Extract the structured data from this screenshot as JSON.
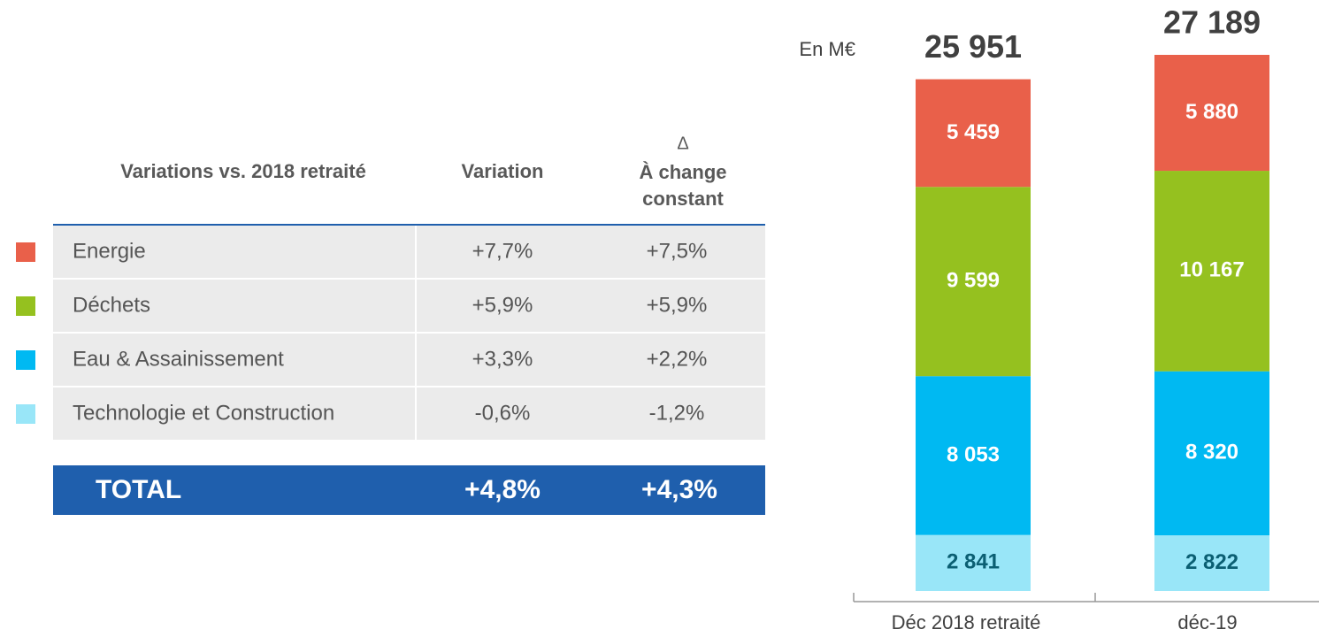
{
  "table": {
    "headers": [
      "Variations vs. 2018 retraité",
      "Variation"
    ],
    "delta_header": {
      "symbol": "Δ",
      "lines": [
        "À change",
        "constant"
      ]
    },
    "rows": [
      {
        "name": "Energie",
        "color": "#e9604a",
        "variation": "+7,7%",
        "constant": "+7,5%"
      },
      {
        "name": "Déchets",
        "color": "#95c11f",
        "variation": "+5,9%",
        "constant": "+5,9%"
      },
      {
        "name": "Eau & Assainissement",
        "color": "#00b9f2",
        "variation": "+3,3%",
        "constant": "+2,2%"
      },
      {
        "name": "Technologie et Construction",
        "color": "#99e6f8",
        "variation": "-0,6%",
        "constant": "-1,2%"
      }
    ],
    "total": {
      "name": "TOTAL",
      "variation": "+4,8%",
      "constant": "+4,3%"
    }
  },
  "chart_data": {
    "type": "bar",
    "stacked": true,
    "unit_label": "En M€",
    "categories": [
      "Déc 2018 retraité",
      "déc-19"
    ],
    "series": [
      {
        "color": "#99e6f8",
        "label_color": "#0b5f73",
        "values": [
          2841,
          2822
        ],
        "value_labels": [
          "2 841",
          "2 822"
        ]
      },
      {
        "color": "#00b9f2",
        "label_color": "#ffffff",
        "values": [
          8053,
          8320
        ],
        "value_labels": [
          "8 053",
          "8 320"
        ]
      },
      {
        "color": "#95c11f",
        "label_color": "#ffffff",
        "values": [
          9599,
          10167
        ],
        "value_labels": [
          "9 599",
          "10 167"
        ]
      },
      {
        "color": "#e9604a",
        "label_color": "#ffffff",
        "values": [
          5459,
          5880
        ],
        "value_labels": [
          "5 459",
          "5 880"
        ]
      }
    ],
    "totals": [
      25951,
      27189
    ],
    "total_labels": [
      "25 951",
      "27 189"
    ]
  }
}
